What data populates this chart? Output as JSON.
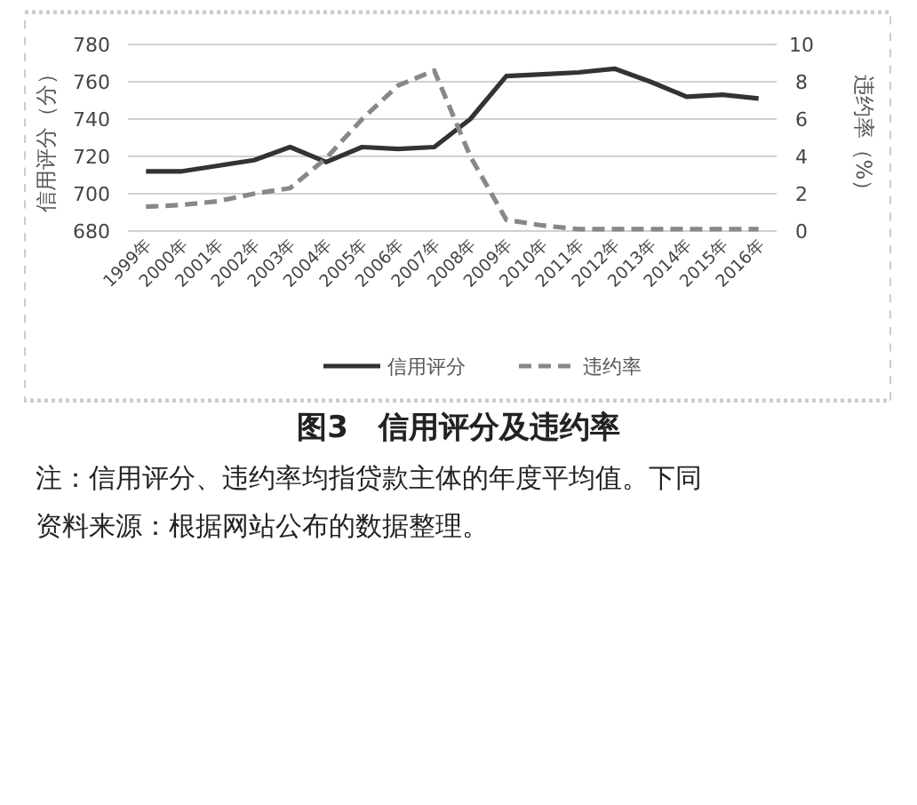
{
  "chart_data": {
    "type": "line",
    "title": "图3　信用评分及违约率",
    "categories": [
      "1999年",
      "2000年",
      "2001年",
      "2002年",
      "2003年",
      "2004年",
      "2005年",
      "2006年",
      "2007年",
      "2008年",
      "2009年",
      "2010年",
      "2011年",
      "2012年",
      "2013年",
      "2014年",
      "2015年",
      "2016年"
    ],
    "series": [
      {
        "name": "信用评分",
        "color": "#333333",
        "line_style": "solid",
        "values": [
          712,
          712,
          715,
          718,
          725,
          717,
          725,
          724,
          725,
          740,
          763,
          764,
          765,
          767,
          760,
          752,
          753,
          751
        ]
      },
      {
        "name": "违约率",
        "color": "#888888",
        "line_style": "dashed",
        "axis": "y2",
        "values": [
          1.3,
          1.4,
          1.6,
          2.0,
          2.3,
          3.9,
          6.0,
          7.8,
          8.6,
          4.0,
          0.6,
          0.3,
          0.1,
          0.1,
          0.1,
          0.1,
          0.1,
          0.1
        ]
      }
    ],
    "ylabel": "信用评分（分）",
    "y2label": "违约率（%）",
    "ylim": [
      680,
      780
    ],
    "yticks": [
      680,
      700,
      720,
      740,
      760,
      780
    ],
    "y2lim": [
      0,
      10
    ],
    "y2ticks": [
      0,
      2,
      4,
      6,
      8,
      10
    ],
    "grid": "y",
    "legend": "bottom",
    "annotations": [
      "注：信用评分、违约率均指贷款主体的年度平均值。下同",
      "资料来源：根据网站公布的数据整理。"
    ]
  }
}
